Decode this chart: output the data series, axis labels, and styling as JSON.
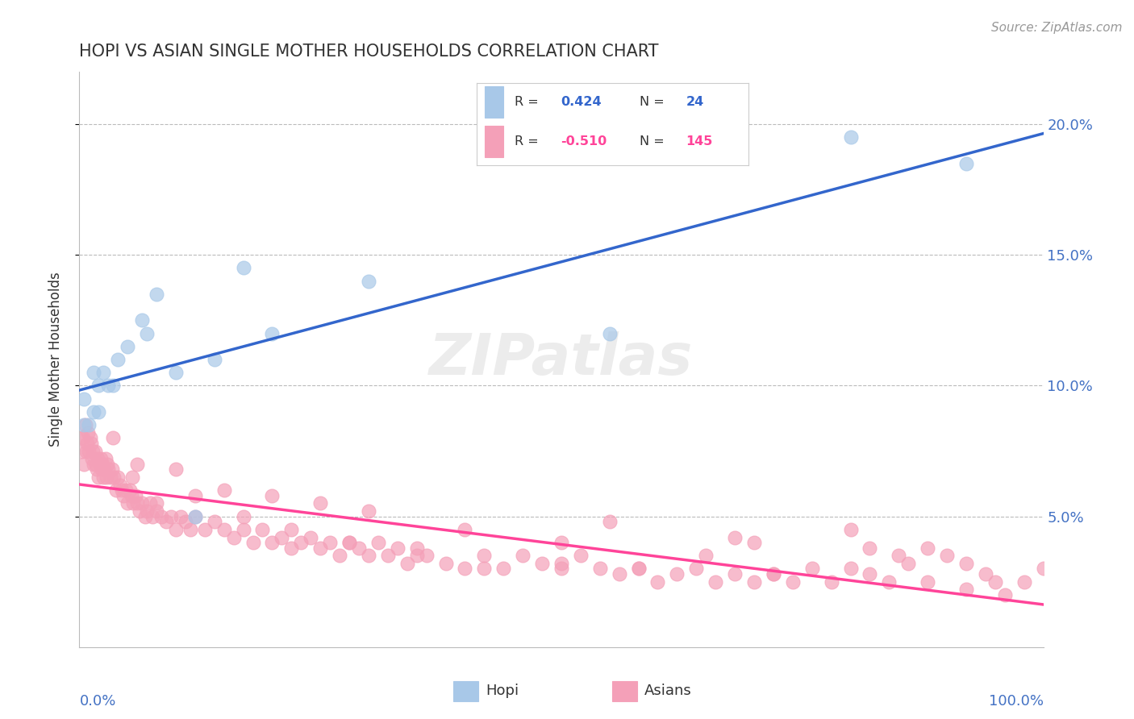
{
  "title": "HOPI VS ASIAN SINGLE MOTHER HOUSEHOLDS CORRELATION CHART",
  "source": "Source: ZipAtlas.com",
  "ylabel": "Single Mother Households",
  "hopi_color": "#A8C8E8",
  "asian_color": "#F4A0B8",
  "hopi_edge_color": "#A8C8E8",
  "asian_edge_color": "#F4A0B8",
  "hopi_line_color": "#3366CC",
  "asian_line_color": "#FF4499",
  "background_color": "#FFFFFF",
  "grid_color": "#BBBBBB",
  "title_color": "#333333",
  "axis_color": "#4472C4",
  "watermark_color": "#E0E0E0",
  "watermark_text": "ZIPatlas",
  "legend_border_color": "#CCCCCC",
  "hopi_r_text": "0.424",
  "asian_r_text": "-0.510",
  "hopi_n_text": "24",
  "asian_n_text": "145",
  "hopi_x": [
    0.5,
    0.5,
    1.0,
    1.5,
    1.5,
    2.0,
    2.0,
    2.5,
    3.0,
    3.5,
    4.0,
    5.0,
    6.5,
    7.0,
    8.0,
    10.0,
    12.0,
    14.0,
    17.0,
    20.0,
    30.0,
    55.0,
    80.0,
    92.0
  ],
  "hopi_y": [
    8.5,
    9.5,
    8.5,
    9.0,
    10.5,
    9.0,
    10.0,
    10.5,
    10.0,
    10.0,
    11.0,
    11.5,
    12.5,
    12.0,
    13.5,
    10.5,
    5.0,
    11.0,
    14.5,
    12.0,
    14.0,
    12.0,
    19.5,
    18.5
  ],
  "asian_x": [
    0.2,
    0.3,
    0.4,
    0.5,
    0.6,
    0.7,
    0.8,
    0.9,
    1.0,
    1.1,
    1.2,
    1.3,
    1.4,
    1.5,
    1.6,
    1.7,
    1.8,
    1.9,
    2.0,
    2.1,
    2.2,
    2.3,
    2.4,
    2.5,
    2.6,
    2.7,
    2.8,
    2.9,
    3.0,
    3.2,
    3.4,
    3.6,
    3.8,
    4.0,
    4.2,
    4.4,
    4.6,
    4.8,
    5.0,
    5.2,
    5.4,
    5.6,
    5.8,
    6.0,
    6.2,
    6.5,
    6.8,
    7.0,
    7.3,
    7.6,
    8.0,
    8.5,
    9.0,
    9.5,
    10.0,
    10.5,
    11.0,
    11.5,
    12.0,
    13.0,
    14.0,
    15.0,
    16.0,
    17.0,
    18.0,
    19.0,
    20.0,
    21.0,
    22.0,
    23.0,
    24.0,
    25.0,
    26.0,
    27.0,
    28.0,
    29.0,
    30.0,
    31.0,
    32.0,
    33.0,
    34.0,
    35.0,
    36.0,
    38.0,
    40.0,
    42.0,
    44.0,
    46.0,
    48.0,
    50.0,
    52.0,
    54.0,
    56.0,
    58.0,
    60.0,
    62.0,
    64.0,
    66.0,
    68.0,
    70.0,
    72.0,
    74.0,
    76.0,
    78.0,
    80.0,
    82.0,
    84.0,
    86.0,
    88.0,
    90.0,
    92.0,
    94.0,
    96.0,
    98.0,
    100.0,
    3.5,
    5.5,
    8.0,
    12.0,
    17.0,
    22.0,
    28.0,
    35.0,
    42.0,
    50.0,
    58.0,
    65.0,
    72.0,
    80.0,
    88.0,
    95.0,
    6.0,
    15.0,
    25.0,
    40.0,
    55.0,
    70.0,
    85.0,
    10.0,
    30.0,
    50.0,
    68.0,
    82.0,
    92.0,
    20.0
  ],
  "asian_y": [
    8.0,
    7.5,
    8.0,
    7.0,
    8.5,
    7.5,
    7.8,
    8.2,
    7.5,
    8.0,
    7.8,
    7.2,
    7.5,
    7.0,
    7.5,
    7.0,
    6.8,
    7.2,
    6.5,
    7.0,
    7.2,
    6.8,
    7.0,
    6.5,
    6.8,
    7.2,
    6.5,
    7.0,
    6.8,
    6.5,
    6.8,
    6.5,
    6.0,
    6.5,
    6.2,
    6.0,
    5.8,
    6.0,
    5.5,
    6.0,
    5.8,
    5.5,
    5.8,
    5.5,
    5.2,
    5.5,
    5.0,
    5.2,
    5.5,
    5.0,
    5.2,
    5.0,
    4.8,
    5.0,
    4.5,
    5.0,
    4.8,
    4.5,
    5.0,
    4.5,
    4.8,
    4.5,
    4.2,
    4.5,
    4.0,
    4.5,
    4.0,
    4.2,
    3.8,
    4.0,
    4.2,
    3.8,
    4.0,
    3.5,
    4.0,
    3.8,
    3.5,
    4.0,
    3.5,
    3.8,
    3.2,
    3.8,
    3.5,
    3.2,
    3.0,
    3.5,
    3.0,
    3.5,
    3.2,
    3.0,
    3.5,
    3.0,
    2.8,
    3.0,
    2.5,
    2.8,
    3.0,
    2.5,
    2.8,
    2.5,
    2.8,
    2.5,
    3.0,
    2.5,
    3.0,
    2.8,
    2.5,
    3.2,
    2.5,
    3.5,
    2.2,
    2.8,
    2.0,
    2.5,
    3.0,
    8.0,
    6.5,
    5.5,
    5.8,
    5.0,
    4.5,
    4.0,
    3.5,
    3.0,
    3.2,
    3.0,
    3.5,
    2.8,
    4.5,
    3.8,
    2.5,
    7.0,
    6.0,
    5.5,
    4.5,
    4.8,
    4.0,
    3.5,
    6.8,
    5.2,
    4.0,
    4.2,
    3.8,
    3.2,
    5.8
  ],
  "xlim": [
    0,
    100
  ],
  "ylim": [
    0,
    22
  ],
  "yticks": [
    5,
    10,
    15,
    20
  ],
  "ytick_labels": [
    "5.0%",
    "10.0%",
    "15.0%",
    "20.0%"
  ]
}
